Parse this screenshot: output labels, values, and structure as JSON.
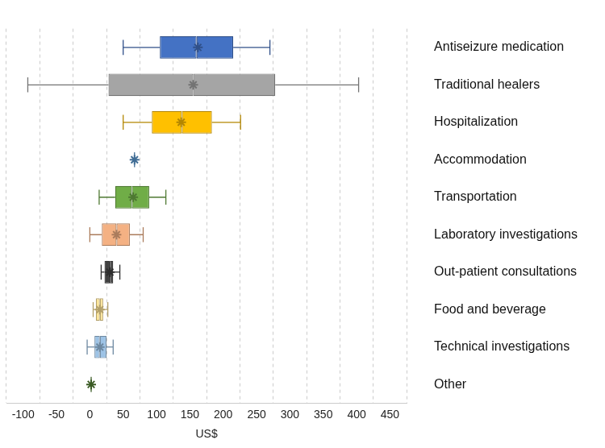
{
  "chart_data": {
    "type": "boxplot",
    "orientation": "horizontal",
    "x_label": "US$",
    "categories": [
      "Antiseizure medication",
      "Traditional healers",
      "Hospitalization",
      "Accommodation",
      "Transportation",
      "Laboratory investigations",
      "Out-patient consultations",
      "Food and beverage",
      "Technical investigations",
      "Other"
    ],
    "stats": [
      {
        "min": 50,
        "q1": 105,
        "median": 160,
        "q3": 215,
        "max": 270,
        "mean": 162
      },
      {
        "min": -93,
        "q1": 28,
        "median": 155,
        "q3": 278,
        "max": 403,
        "mean": 155
      },
      {
        "min": 50,
        "q1": 93,
        "median": 138,
        "q3": 183,
        "max": 226,
        "mean": 137
      },
      {
        "min": 67,
        "q1": 67,
        "median": 67,
        "q3": 67,
        "max": 67,
        "mean": 67
      },
      {
        "min": 14,
        "q1": 38,
        "median": 63,
        "q3": 89,
        "max": 114,
        "mean": 65
      },
      {
        "min": 0,
        "q1": 18,
        "median": 40,
        "q3": 60,
        "max": 80,
        "mean": 40
      },
      {
        "min": 17,
        "q1": 22,
        "median": 30,
        "q3": 35,
        "max": 45,
        "mean": 30
      },
      {
        "min": 5,
        "q1": 9,
        "median": 15,
        "q3": 20,
        "max": 27,
        "mean": 15
      },
      {
        "min": -4,
        "q1": 7,
        "median": 15,
        "q3": 25,
        "max": 35,
        "mean": 15
      },
      {
        "min": 2,
        "q1": 2,
        "median": 2,
        "q3": 2,
        "max": 2,
        "mean": 2
      }
    ],
    "colors": [
      "#4472c4",
      "#a5a5a5",
      "#ffc000",
      "#5b9bd5",
      "#70ad47",
      "#f4b183",
      "#404040",
      "#ffe699",
      "#9dc3e6",
      "#548235"
    ],
    "marker": "star",
    "xlim": [
      -100,
      450
    ],
    "xticks": [
      -100,
      -50,
      0,
      50,
      100,
      150,
      200,
      250,
      300,
      350,
      400,
      450
    ],
    "grid": true
  }
}
